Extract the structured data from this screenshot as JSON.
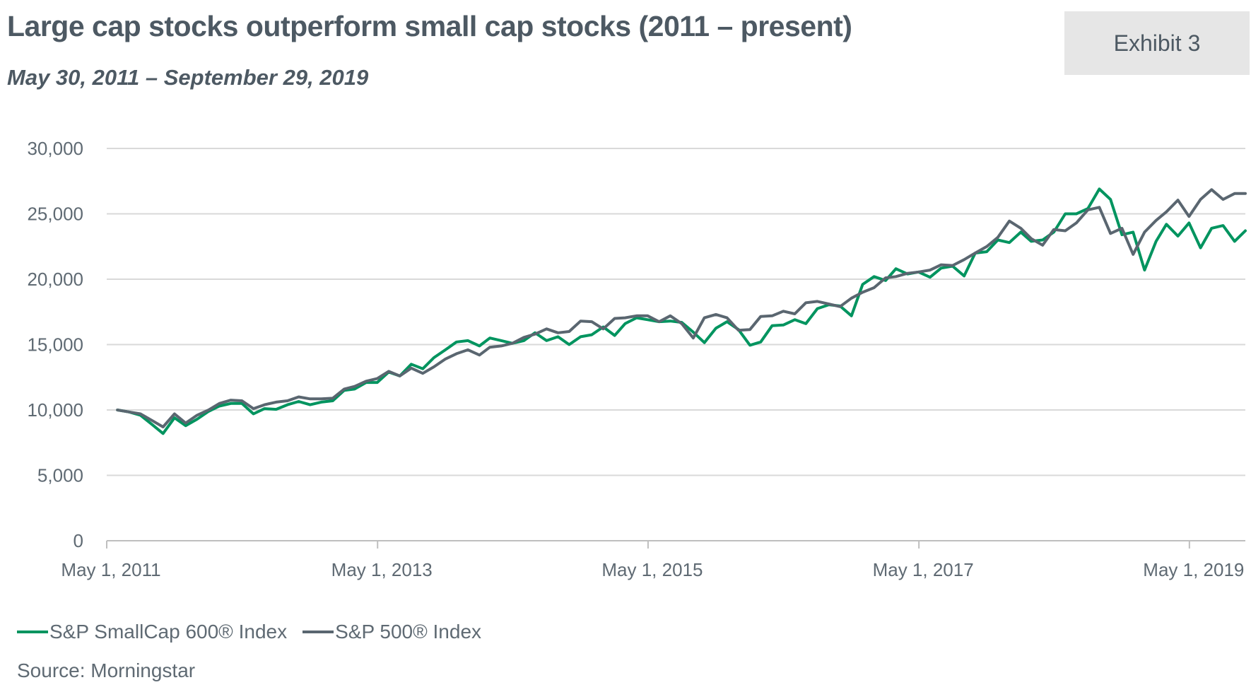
{
  "title": "Large cap stocks outperform small cap stocks (2011 – present)",
  "subtitle": "May 30, 2011 – September 29, 2019",
  "exhibit_label": "Exhibit 3",
  "source": "Source: Morningstar",
  "colors": {
    "smallcap": "#00945f",
    "sp500": "#5a6670",
    "grid": "#d9d9d9",
    "axis": "#bfbfbf"
  },
  "chart_data": {
    "type": "line",
    "xlabel": "",
    "ylabel": "",
    "ylim": [
      0,
      30000
    ],
    "yticks": [
      0,
      5000,
      10000,
      15000,
      20000,
      25000,
      30000
    ],
    "ytick_labels": [
      "0",
      "5,000",
      "10,000",
      "15,000",
      "20,000",
      "25,000",
      "30,000"
    ],
    "xlim": [
      "2011-05-01",
      "2019-09-29"
    ],
    "xticks": [
      "2011-05-01",
      "2013-05-01",
      "2015-05-01",
      "2017-05-01",
      "2019-05-01"
    ],
    "xtick_labels": [
      "May 1, 2011",
      "May 1, 2013",
      "May 1, 2015",
      "May 1, 2017",
      "May 1, 2019"
    ],
    "grid": true,
    "legend": "bottom-left",
    "x": [
      "2011-05-30",
      "2011-06-30",
      "2011-07-31",
      "2011-08-31",
      "2011-09-30",
      "2011-10-31",
      "2011-11-30",
      "2011-12-31",
      "2012-01-31",
      "2012-02-29",
      "2012-03-31",
      "2012-04-30",
      "2012-05-31",
      "2012-06-30",
      "2012-07-31",
      "2012-08-31",
      "2012-09-30",
      "2012-10-31",
      "2012-11-30",
      "2012-12-31",
      "2013-01-31",
      "2013-02-28",
      "2013-03-31",
      "2013-04-30",
      "2013-05-31",
      "2013-06-30",
      "2013-07-31",
      "2013-08-31",
      "2013-09-30",
      "2013-10-31",
      "2013-11-30",
      "2013-12-31",
      "2014-01-31",
      "2014-02-28",
      "2014-03-31",
      "2014-04-30",
      "2014-05-31",
      "2014-06-30",
      "2014-07-31",
      "2014-08-31",
      "2014-09-30",
      "2014-10-31",
      "2014-11-30",
      "2014-12-31",
      "2015-01-31",
      "2015-02-28",
      "2015-03-31",
      "2015-04-30",
      "2015-05-31",
      "2015-06-30",
      "2015-07-31",
      "2015-08-31",
      "2015-09-30",
      "2015-10-31",
      "2015-11-30",
      "2015-12-31",
      "2016-01-31",
      "2016-02-29",
      "2016-03-31",
      "2016-04-30",
      "2016-05-31",
      "2016-06-30",
      "2016-07-31",
      "2016-08-31",
      "2016-09-30",
      "2016-10-31",
      "2016-11-30",
      "2016-12-31",
      "2017-01-31",
      "2017-02-28",
      "2017-03-31",
      "2017-04-30",
      "2017-05-31",
      "2017-06-30",
      "2017-07-31",
      "2017-08-31",
      "2017-09-30",
      "2017-10-31",
      "2017-11-30",
      "2017-12-31",
      "2018-01-31",
      "2018-02-28",
      "2018-03-31",
      "2018-04-30",
      "2018-05-31",
      "2018-06-30",
      "2018-07-31",
      "2018-08-31",
      "2018-09-30",
      "2018-10-31",
      "2018-11-30",
      "2018-12-31",
      "2019-01-31",
      "2019-02-28",
      "2019-03-31",
      "2019-04-30",
      "2019-05-31",
      "2019-06-30",
      "2019-07-31",
      "2019-08-31",
      "2019-09-29"
    ],
    "series": [
      {
        "name": "S&P SmallCap 600® Index",
        "values": [
          10000,
          9850,
          9600,
          8900,
          8200,
          9400,
          8800,
          9300,
          9900,
          10300,
          10500,
          10500,
          9700,
          10100,
          10050,
          10400,
          10650,
          10400,
          10600,
          10700,
          11500,
          11600,
          12100,
          12100,
          12900,
          12600,
          13500,
          13150,
          14000,
          14600,
          15200,
          15300,
          14900,
          15500,
          15300,
          15100,
          15300,
          15900,
          15300,
          15600,
          15000,
          15600,
          15750,
          16350,
          15700,
          16600,
          17050,
          16900,
          16750,
          16800,
          16700,
          15950,
          15150,
          16250,
          16750,
          16150,
          14950,
          15200,
          16450,
          16500,
          16900,
          16600,
          17750,
          18050,
          17950,
          17200,
          19600,
          20200,
          19900,
          20800,
          20400,
          20550,
          20150,
          20850,
          21000,
          20250,
          22000,
          22100,
          23000,
          22800,
          23600,
          22900,
          23000,
          23600,
          25000,
          25000,
          25400,
          26900,
          26100,
          23400,
          23600,
          20700,
          22900,
          24200,
          23300,
          24300,
          22400,
          23900,
          24100,
          22900,
          23700
        ]
      },
      {
        "name": "S&P 500® Index",
        "values": [
          10000,
          9850,
          9700,
          9200,
          8700,
          9700,
          9000,
          9600,
          10000,
          10500,
          10750,
          10700,
          10100,
          10400,
          10600,
          10700,
          11000,
          10850,
          10850,
          10900,
          11600,
          11800,
          12200,
          12400,
          12950,
          12600,
          13200,
          12800,
          13300,
          13900,
          14300,
          14600,
          14200,
          14800,
          14900,
          15100,
          15550,
          15800,
          16200,
          15900,
          16000,
          16800,
          16750,
          16200,
          17000,
          17050,
          17200,
          17200,
          16750,
          17200,
          16600,
          15500,
          17050,
          17300,
          17050,
          16100,
          16150,
          17150,
          17200,
          17550,
          17350,
          18200,
          18300,
          18100,
          17900,
          18550,
          19000,
          19350,
          20100,
          20200,
          20450,
          20550,
          20700,
          21100,
          21050,
          21500,
          22000,
          22500,
          23200,
          24450,
          23900,
          23100,
          22600,
          23800,
          23700,
          24300,
          25300,
          25500,
          23500,
          23900,
          21900,
          23600,
          24500,
          25150,
          26050,
          24800,
          26100,
          26850,
          26100,
          26550,
          26550
        ]
      }
    ]
  }
}
